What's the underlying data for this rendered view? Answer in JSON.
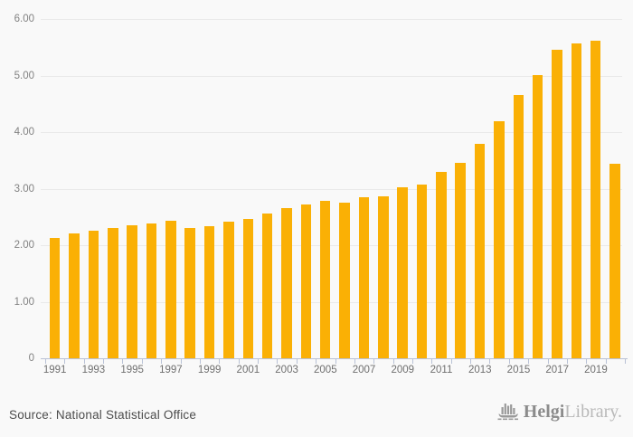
{
  "chart_data": {
    "type": "bar",
    "title": "",
    "xlabel": "",
    "ylabel": "",
    "categories": [
      1991,
      1992,
      1993,
      1994,
      1995,
      1996,
      1997,
      1998,
      1999,
      2000,
      2001,
      2002,
      2003,
      2004,
      2005,
      2006,
      2007,
      2008,
      2009,
      2010,
      2011,
      2012,
      2013,
      2014,
      2015,
      2016,
      2017,
      2018,
      2019,
      2020
    ],
    "values": [
      2.13,
      2.21,
      2.25,
      2.31,
      2.36,
      2.39,
      2.44,
      2.3,
      2.34,
      2.41,
      2.47,
      2.56,
      2.66,
      2.72,
      2.78,
      2.75,
      2.85,
      2.86,
      3.03,
      3.08,
      3.3,
      3.46,
      3.79,
      4.2,
      4.65,
      5.01,
      5.46,
      5.57,
      5.62,
      3.44
    ],
    "ylim": [
      0,
      6
    ],
    "y_tick_values": [
      0,
      1,
      2,
      3,
      4,
      5,
      6
    ],
    "y_tick_labels": [
      "0",
      "1.00",
      "2.00",
      "3.00",
      "4.00",
      "5.00",
      "6.00"
    ],
    "x_tick_labels": [
      "1991",
      "1993",
      "1995",
      "1997",
      "1999",
      "2001",
      "2003",
      "2005",
      "2007",
      "2009",
      "2011",
      "2013",
      "2015",
      "2017",
      "2019"
    ],
    "grid": true,
    "legend": "none",
    "bar_color": "#FAB005",
    "grid_color": "#e9e9e9",
    "axis_color": "#b9c2d6",
    "background_color": "#f9f9f9"
  },
  "footer": {
    "source": "Source: National Statistical Office",
    "brand": {
      "icon": "helgi-ship-icon",
      "name_bold": "Helgi",
      "name_light": "Library."
    }
  }
}
